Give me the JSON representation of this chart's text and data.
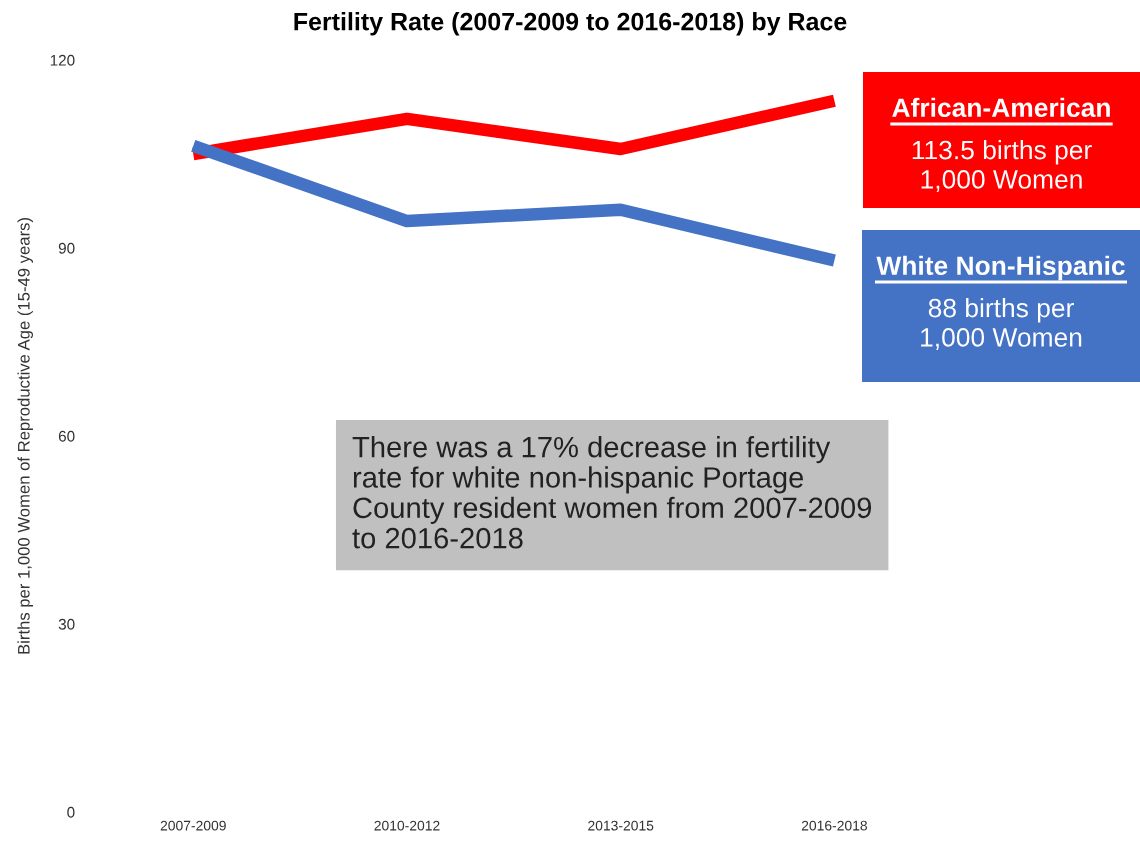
{
  "chart_data": {
    "type": "line",
    "title": "Fertility Rate (2007-2009 to 2016-2018) by Race",
    "ylabel": "Births per 1,000 Women of Reproductive Age (15-49 years)",
    "categories": [
      "2007-2009",
      "2010-2012",
      "2013-2015",
      "2016-2018"
    ],
    "series": [
      {
        "name": "African-American",
        "color": "#ff0000",
        "values": [
          105.0,
          110.6,
          105.8,
          113.5
        ]
      },
      {
        "name": "White Non-Hispanic",
        "color": "#4472c4",
        "values": [
          106.3,
          94.3,
          96.1,
          88.0
        ]
      }
    ],
    "annotations": [
      "113.5 births per\n1,000 Women",
      "88 births per\n1,000 Women",
      "There was a 17% decrease in fertility\nrate for white non-hispanic Portage\nCounty resident women from 2007-2009\nto 2016-2018"
    ],
    "ylim": [
      0,
      120
    ],
    "yticks": [
      0,
      30,
      60,
      90,
      120
    ],
    "grid": false,
    "legend": false,
    "marker": "none",
    "line_style": "solid"
  }
}
